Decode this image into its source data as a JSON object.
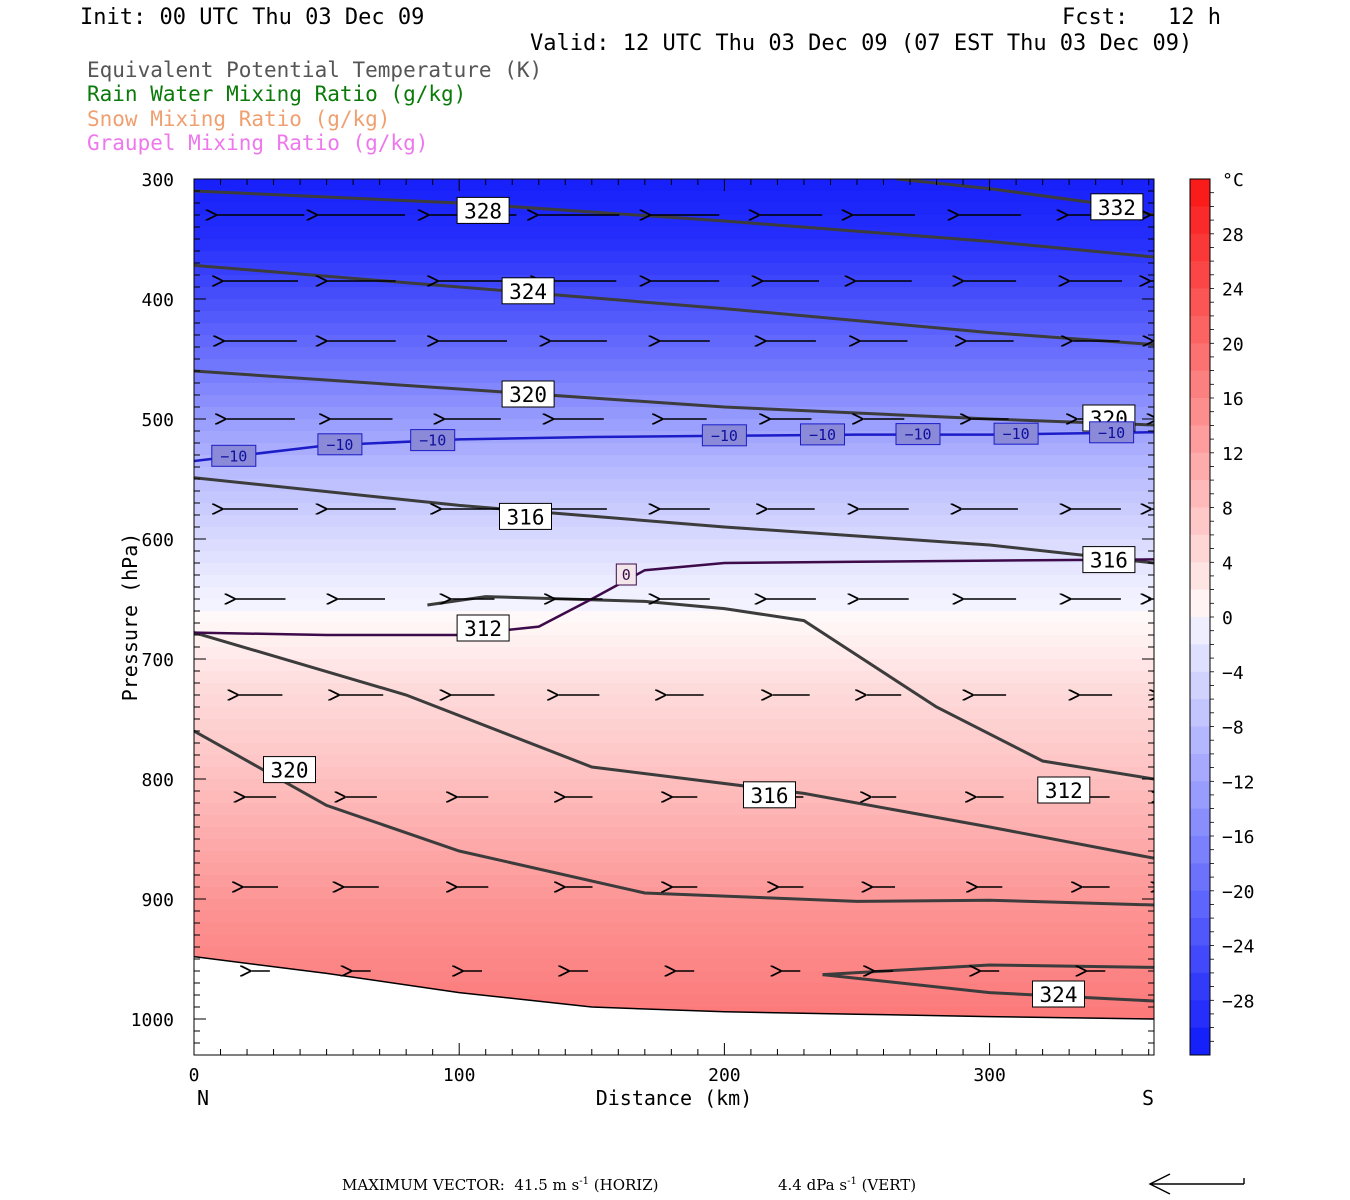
{
  "header": {
    "init": "Init: 00 UTC Thu 03 Dec 09",
    "fcst": "Fcst:   12 h",
    "valid": "Valid: 12 UTC Thu 03 Dec 09 (07 EST Thu 03 Dec 09)"
  },
  "legend": [
    {
      "text": "Equivalent Potential Temperature (K)",
      "color": "#555555"
    },
    {
      "text": "Rain Water Mixing Ratio (g/kg)",
      "color": "#0a7a0a"
    },
    {
      "text": "Snow Mixing Ratio (g/kg)",
      "color": "#f0a070"
    },
    {
      "text": "Graupel Mixing Ratio (g/kg)",
      "color": "#ee77ee"
    }
  ],
  "chart_data": {
    "type": "heatmap",
    "xlabel": "Distance (km)",
    "ylabel": "Pressure (hPa)",
    "xlim": [
      0,
      362
    ],
    "ylim": [
      1030,
      300
    ],
    "x_ticks": [
      0,
      100,
      200,
      300
    ],
    "y_ticks": [
      300,
      400,
      500,
      600,
      700,
      800,
      900,
      1000
    ],
    "end_labels": {
      "left": "N",
      "right": "S"
    },
    "colorbar": {
      "unit": "°C",
      "tick_labels": [
        "28",
        "24",
        "20",
        "16",
        "12",
        "8",
        "4",
        "0",
        "−4",
        "−8",
        "−12",
        "−16",
        "−20",
        "−24",
        "−28"
      ],
      "tick_values": [
        28,
        24,
        20,
        16,
        12,
        8,
        4,
        0,
        -4,
        -8,
        -12,
        -16,
        -20,
        -24,
        -28
      ],
      "range": [
        -32,
        32
      ],
      "step": 2
    },
    "temperature_profile": {
      "pressure": [
        300,
        350,
        400,
        450,
        500,
        550,
        600,
        640,
        680,
        720,
        780,
        850,
        900,
        950,
        1000
      ],
      "temp_c": [
        -31,
        -29,
        -24,
        -19,
        -13,
        -8,
        -4,
        -1,
        1,
        4,
        7,
        11,
        14,
        16,
        18
      ]
    },
    "surface": {
      "x": [
        0,
        50,
        100,
        150,
        200,
        250,
        300,
        362
      ],
      "p": [
        948,
        962,
        978,
        990,
        994,
        996,
        998,
        1000
      ]
    },
    "isotherm_minus10": {
      "x": [
        0,
        50,
        100,
        150,
        200,
        250,
        300,
        362
      ],
      "p": [
        535,
        522,
        517,
        515,
        514,
        513,
        513,
        511
      ],
      "label": "−10"
    },
    "isotherm_0": {
      "x": [
        0,
        50,
        100,
        130,
        150,
        170,
        200,
        250,
        300,
        362
      ],
      "p": [
        678,
        680,
        680,
        673,
        650,
        626,
        620,
        619,
        618,
        617
      ],
      "label": "0"
    },
    "theta_e_contours": [
      {
        "label": "328",
        "x": [
          0,
          100,
          200,
          300,
          362
        ],
        "p": [
          310,
          320,
          335,
          352,
          365
        ]
      },
      {
        "label": "332",
        "x": [
          265,
          300,
          340,
          362
        ],
        "p": [
          300,
          308,
          320,
          330
        ]
      },
      {
        "label": "324",
        "x": [
          0,
          100,
          200,
          300,
          362
        ],
        "p": [
          372,
          390,
          408,
          428,
          438
        ]
      },
      {
        "label": "320",
        "x": [
          0,
          100,
          200,
          300,
          362
        ],
        "p": [
          460,
          475,
          490,
          500,
          505
        ]
      },
      {
        "label": "316",
        "x": [
          0,
          100,
          200,
          300,
          362
        ],
        "p": [
          549,
          572,
          590,
          605,
          620
        ]
      },
      {
        "label": "312",
        "x": [
          88,
          110,
          170,
          200,
          230,
          280,
          320,
          362
        ],
        "p": [
          655,
          648,
          652,
          658,
          668,
          740,
          785,
          800
        ]
      },
      {
        "label": "316",
        "x": [
          0,
          80,
          150,
          230,
          300,
          362
        ],
        "p": [
          678,
          730,
          790,
          812,
          840,
          866
        ]
      },
      {
        "label": "320",
        "x": [
          0,
          50,
          100,
          170,
          250,
          300,
          362
        ],
        "p": [
          760,
          822,
          860,
          895,
          902,
          901,
          905
        ]
      },
      {
        "label": "324",
        "x": [
          237,
          300,
          362
        ],
        "p": [
          963,
          955,
          957
        ]
      },
      {
        "label": "",
        "x": [
          237,
          300,
          362
        ],
        "p": [
          963,
          978,
          985
        ]
      }
    ],
    "contour_labels": [
      {
        "text": "328",
        "x": 109,
        "p": 327
      },
      {
        "text": "332",
        "x": 348,
        "p": 324
      },
      {
        "text": "324",
        "x": 126,
        "p": 394
      },
      {
        "text": "320",
        "x": 126,
        "p": 480
      },
      {
        "text": "320",
        "x": 345,
        "p": 500
      },
      {
        "text": "316",
        "x": 125,
        "p": 582
      },
      {
        "text": "316",
        "x": 345,
        "p": 618
      },
      {
        "text": "312",
        "x": 109,
        "p": 675
      },
      {
        "text": "312",
        "x": 328,
        "p": 810
      },
      {
        "text": "316",
        "x": 217,
        "p": 814
      },
      {
        "text": "320",
        "x": 36,
        "p": 793
      },
      {
        "text": "324",
        "x": 326,
        "p": 980
      }
    ],
    "minus10_label_positions": [
      15,
      55,
      90,
      200,
      237,
      273,
      310,
      346
    ],
    "wind_rows": [
      {
        "p": 330,
        "x": [
          10,
          48,
          90,
          130,
          170,
          210,
          245,
          285,
          325,
          355
        ],
        "len": [
          70,
          70,
          70,
          65,
          55,
          50,
          50,
          50,
          45,
          40
        ]
      },
      {
        "p": 385,
        "x": [
          10,
          48,
          90,
          130,
          170,
          210,
          245,
          285,
          325,
          355
        ],
        "len": [
          60,
          55,
          55,
          60,
          55,
          45,
          45,
          42,
          42,
          40
        ]
      },
      {
        "p": 435,
        "x": [
          10,
          48,
          90,
          130,
          170,
          210,
          245,
          285,
          325,
          355
        ],
        "len": [
          58,
          55,
          55,
          45,
          40,
          40,
          38,
          38,
          38,
          35
        ]
      },
      {
        "p": 500,
        "x": [
          10,
          48,
          90,
          130,
          170,
          210,
          245,
          285,
          325,
          355
        ],
        "len": [
          55,
          50,
          45,
          40,
          35,
          33,
          33,
          30,
          30,
          28
        ]
      },
      {
        "p": 575,
        "x": [
          10,
          48,
          90,
          130,
          170,
          210,
          245,
          285,
          325,
          355
        ],
        "len": [
          60,
          55,
          50,
          45,
          40,
          38,
          40,
          45,
          40,
          38
        ]
      },
      {
        "p": 650,
        "x": [
          10,
          48,
          90,
          130,
          170,
          210,
          245,
          285,
          325,
          355
        ],
        "len": [
          40,
          38,
          35,
          38,
          40,
          40,
          40,
          42,
          40,
          38
        ]
      },
      {
        "p": 730,
        "x": [
          10,
          48,
          90,
          130,
          170,
          210,
          245,
          285,
          325,
          355
        ],
        "len": [
          35,
          35,
          35,
          33,
          30,
          30,
          28,
          26,
          26,
          24
        ]
      },
      {
        "p": 815,
        "x": [
          10,
          48,
          90,
          130,
          170,
          210,
          245,
          285,
          325,
          355
        ],
        "len": [
          25,
          25,
          25,
          22,
          20,
          20,
          20,
          22,
          22,
          20
        ]
      },
      {
        "p": 890,
        "x": [
          10,
          48,
          90,
          130,
          170,
          210,
          245,
          285,
          325,
          355
        ],
        "len": [
          28,
          28,
          25,
          22,
          20,
          20,
          18,
          20,
          22,
          22
        ]
      },
      {
        "p": 960,
        "x": [
          10,
          48,
          90,
          130,
          170,
          210,
          245,
          285,
          325,
          355
        ],
        "len": [
          15,
          15,
          15,
          15,
          15,
          15,
          15,
          15,
          15,
          15
        ]
      }
    ]
  },
  "footer": {
    "max_vector_label": "MAXIMUM VECTOR:",
    "horiz_value": "41.5 m s",
    "horiz_unit_exp": "-1",
    "horiz_tag": " (HORIZ)",
    "vert_value": "4.4 dPa s",
    "vert_unit_exp": "-1",
    "vert_tag": " (VERT)"
  }
}
